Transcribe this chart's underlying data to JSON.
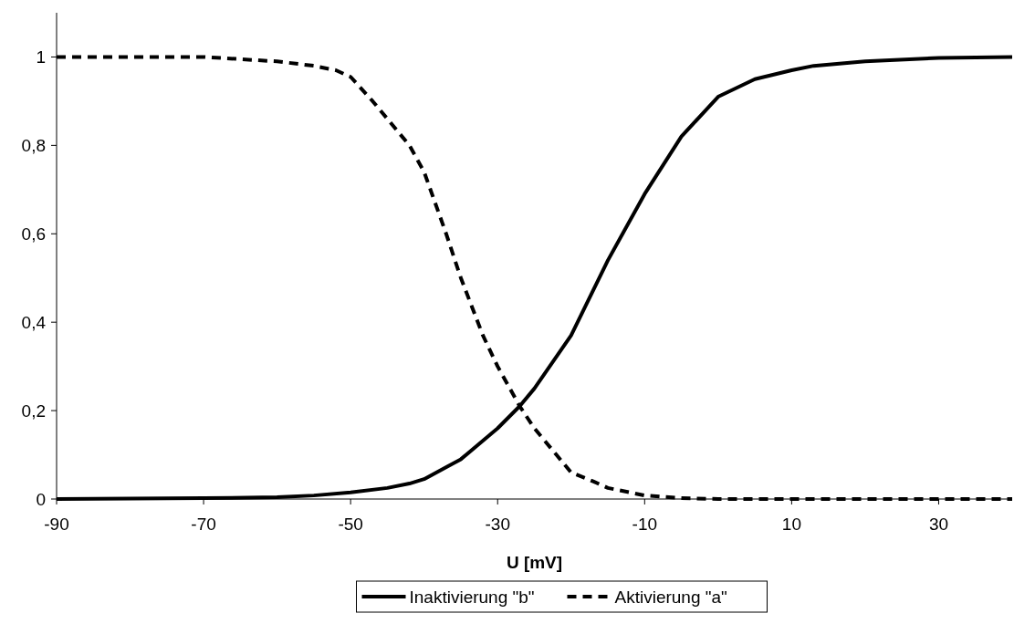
{
  "chart_data": {
    "type": "line",
    "xlabel": "U [mV]",
    "xlim": [
      -90,
      40
    ],
    "xticks": [
      -90,
      -70,
      -50,
      -30,
      -10,
      10,
      30
    ],
    "ylim": [
      0,
      1.1
    ],
    "yticks": [
      {
        "value": 0,
        "label": "0"
      },
      {
        "value": 0.2,
        "label": "0,2"
      },
      {
        "value": 0.4,
        "label": "0,4"
      },
      {
        "value": 0.6,
        "label": "0,6"
      },
      {
        "value": 0.8,
        "label": "0,8"
      },
      {
        "value": 1,
        "label": "1"
      }
    ],
    "grid": false,
    "legend": "bottom",
    "marker": "none",
    "series": [
      {
        "name": "Inaktivierung \"b\"",
        "color": "#000000",
        "line_style": "solid",
        "x": [
          -90,
          -80,
          -70,
          -60,
          -55,
          -50,
          -45,
          -42,
          -40,
          -35,
          -30,
          -27,
          -25,
          -20,
          -15,
          -10,
          -5,
          0,
          5,
          10,
          13,
          20,
          30,
          40
        ],
        "values": [
          0,
          0.001,
          0.002,
          0.004,
          0.008,
          0.015,
          0.025,
          0.035,
          0.045,
          0.09,
          0.16,
          0.21,
          0.25,
          0.37,
          0.54,
          0.69,
          0.82,
          0.91,
          0.95,
          0.97,
          0.98,
          0.99,
          0.998,
          1
        ]
      },
      {
        "name": "Aktivierung \"a\"",
        "color": "#000000",
        "line_style": "dashed",
        "x": [
          -90,
          -80,
          -70,
          -65,
          -60,
          -55,
          -52,
          -50,
          -47,
          -45,
          -42,
          -40,
          -37,
          -35,
          -32,
          -30,
          -27,
          -25,
          -22,
          -20,
          -17,
          -15,
          -12,
          -10,
          -5,
          0,
          10,
          20,
          30,
          40
        ],
        "values": [
          1,
          1,
          1,
          0.995,
          0.99,
          0.98,
          0.97,
          0.955,
          0.9,
          0.86,
          0.8,
          0.74,
          0.6,
          0.5,
          0.37,
          0.3,
          0.21,
          0.16,
          0.1,
          0.06,
          0.04,
          0.025,
          0.015,
          0.008,
          0.002,
          0,
          0,
          0,
          0,
          0
        ]
      }
    ]
  }
}
